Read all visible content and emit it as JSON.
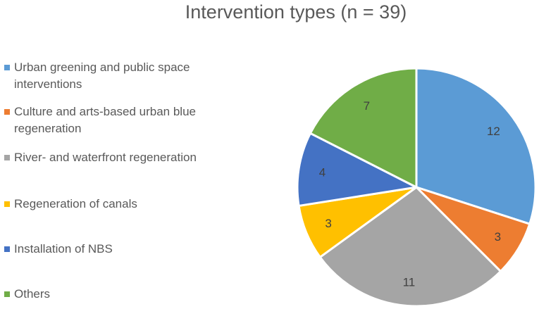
{
  "chart_data": {
    "type": "pie",
    "title": "Intervention types (n = 39)",
    "categories": [
      "Urban greening and public space interventions",
      "Culture and arts-based urban blue regeneration",
      "River- and waterfront regeneration",
      "Regeneration of canals",
      "Installation of NBS",
      "Others"
    ],
    "values": [
      12,
      3,
      11,
      3,
      4,
      7
    ],
    "data_labels": [
      "12",
      "3",
      "11",
      "3",
      "4",
      "7"
    ],
    "colors": [
      "#5B9BD5",
      "#ED7D31",
      "#A5A5A5",
      "#FFC000",
      "#4472C4",
      "#70AD47"
    ],
    "start_angle_deg": 0,
    "direction": "clockwise",
    "legend_position": "left"
  },
  "legend": {
    "items": [
      {
        "label": "Urban greening and public space interventions",
        "icon": "square-swatch"
      },
      {
        "label": "Culture and arts-based urban blue regeneration",
        "icon": "square-swatch"
      },
      {
        "label": "River- and waterfront regeneration",
        "icon": "square-swatch"
      },
      {
        "label": "Regeneration of canals",
        "icon": "square-swatch"
      },
      {
        "label": "Installation of NBS",
        "icon": "square-swatch"
      },
      {
        "label": "Others",
        "icon": "square-swatch"
      }
    ]
  }
}
